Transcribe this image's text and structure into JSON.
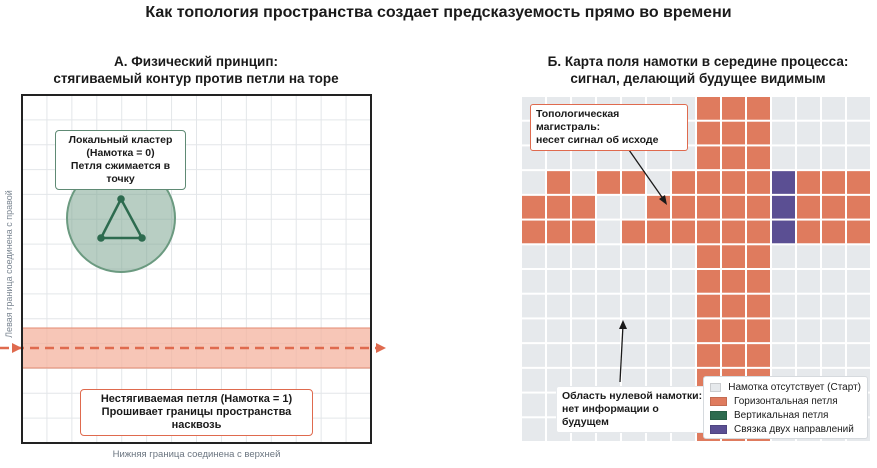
{
  "title": "Как топология пространства создает предсказуемость прямо во времени",
  "panel_a": {
    "title_line1": "А. Физический принцип:",
    "title_line2": "стягиваемый контур против петли на торе",
    "side_label": "Левая граница соединена с правой",
    "bottom_label": "Нижняя граница соединена с верхней",
    "cluster": {
      "line1": "Локальный кластер",
      "line2": "(Намотка = 0)",
      "line3": "Петля сжимается в точку"
    },
    "loop": {
      "line1": "Нестягиваемая петля (Намотка = 1)",
      "line2": "Прошивает границы пространства насквозь"
    }
  },
  "panel_b": {
    "title_line1": "Б. Карта поля намотки в середине процесса:",
    "title_line2": "сигнал, делающий будущее видимым",
    "highway": {
      "line1": "Топологическая магистраль:",
      "line2": "несет сигнал об исходе"
    },
    "zero_region": {
      "line1": "Область нулевой намотки:",
      "line2": "нет информации о будущем"
    },
    "legend": [
      {
        "label": "Намотка отсутствует (Старт)",
        "color": "#e6e9ec"
      },
      {
        "label": "Горизонтальная петля",
        "color": "#df7b5e"
      },
      {
        "label": "Вертикальная петля",
        "color": "#2d6b4f"
      },
      {
        "label": "Связка двух направлений",
        "color": "#5b4f93"
      }
    ],
    "grid": {
      "rows": 14,
      "cols": 14,
      "cells": [
        "00000001110000",
        "00000001110000",
        "00000001110000",
        "01011011113111",
        "11100111113111",
        "11101111113111",
        "00000001110000",
        "00000001110000",
        "00000001110000",
        "00000001110000",
        "00000001110000",
        "00000001110000",
        "00000001110000",
        "00000001110000"
      ]
    }
  },
  "colors": {
    "cluster_fill": "#6b9a80",
    "cluster_edge": "#2d6b4f",
    "loop_band": "#f0a58c",
    "loop_line": "#df6a4e",
    "grid_empty": "#e6e9ec"
  }
}
